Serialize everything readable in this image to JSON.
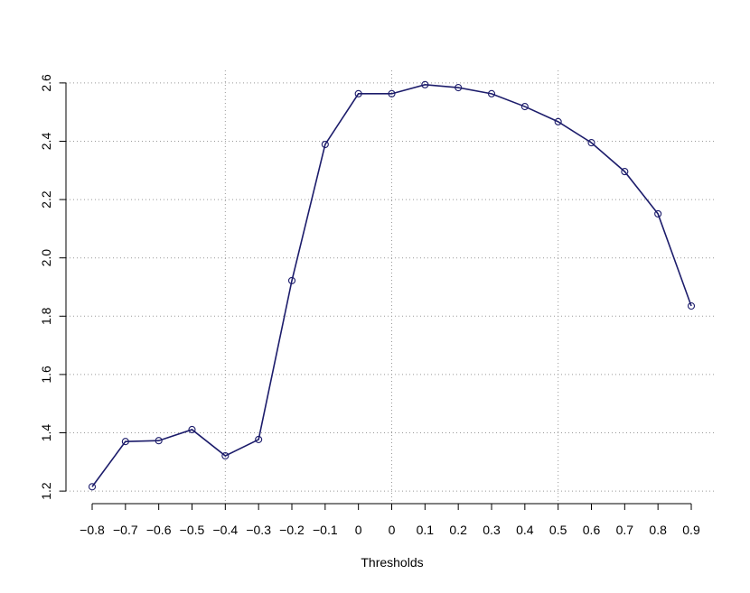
{
  "chart_data": {
    "type": "line",
    "xlabel": "Thresholds",
    "categories": [
      "−0.8",
      "−0.7",
      "−0.6",
      "−0.5",
      "−0.4",
      "−0.3",
      "−0.2",
      "−0.1",
      "0",
      "0",
      "0.1",
      "0.2",
      "0.3",
      "0.4",
      "0.5",
      "0.6",
      "0.7",
      "0.8",
      "0.9"
    ],
    "series": [
      {
        "color": "#1c1c6b",
        "values": [
          1.215,
          1.37,
          1.373,
          1.411,
          1.321,
          1.377,
          1.922,
          2.389,
          2.563,
          2.563,
          2.594,
          2.584,
          2.563,
          2.519,
          2.467,
          2.395,
          2.296,
          2.151,
          1.835
        ]
      }
    ],
    "ylim": [
      1.157,
      2.643
    ],
    "yticks": [
      1.2,
      1.4,
      1.6,
      1.8,
      {
        "value": 2.0,
        "label": "2.0"
      },
      2.2,
      2.4,
      2.6
    ],
    "grid": true
  }
}
